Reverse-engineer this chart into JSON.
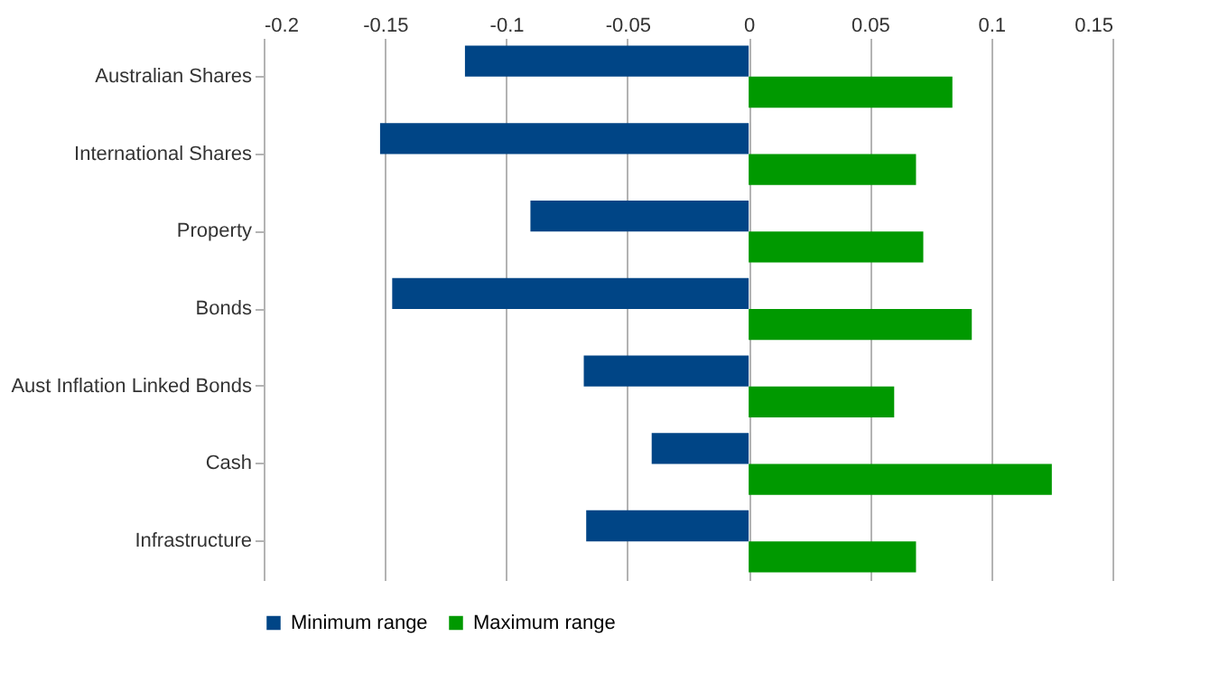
{
  "chart_data": {
    "type": "bar",
    "orientation": "horizontal",
    "categories": [
      "Australian Shares",
      "International Shares",
      "Property",
      "Bonds",
      "Aust Inflation Linked Bonds",
      "Cash",
      "Infrastructure"
    ],
    "series": [
      {
        "name": "Minimum range",
        "color": "#004586",
        "values": [
          -0.117,
          -0.152,
          -0.09,
          -0.147,
          -0.068,
          -0.04,
          -0.067
        ]
      },
      {
        "name": "Maximum range",
        "color": "#009900",
        "values": [
          0.084,
          0.069,
          0.072,
          0.092,
          0.06,
          0.125,
          0.069
        ]
      }
    ],
    "xlim": [
      -0.2,
      0.15
    ],
    "xticks": [
      -0.2,
      -0.15,
      -0.1,
      -0.05,
      0,
      0.05,
      0.1,
      0.15
    ],
    "grid": "x",
    "legend": "bottom"
  }
}
